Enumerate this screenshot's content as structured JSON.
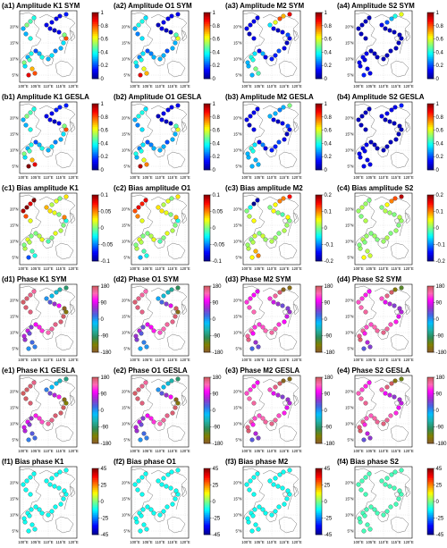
{
  "figure": {
    "axis_ticks": {
      "lon": [
        "100°E",
        "105°E",
        "110°E",
        "115°E",
        "120°E"
      ],
      "lat": [
        "5°N",
        "10°N",
        "15°N",
        "20°N"
      ]
    },
    "colormaps": {
      "jet": [
        "#00008f",
        "#0000ff",
        "#0080ff",
        "#00ffff",
        "#80ff80",
        "#ffff00",
        "#ff8000",
        "#ff0000",
        "#800000"
      ],
      "phase": [
        "#8b5a2b",
        "#808000",
        "#2e8b57",
        "#20b2aa",
        "#00bfff",
        "#4169e1",
        "#9932cc",
        "#ff00ff",
        "#ff69b4",
        "#cd5c5c"
      ]
    },
    "point_values": [
      [
        0.35,
        0.5,
        0.3,
        0.4,
        0.45,
        0.7,
        0.8,
        0.9,
        0.2,
        0.3,
        0.4,
        0.3,
        0.35,
        0.25,
        0.3,
        0.35,
        0.8,
        0.5,
        0.1,
        0.05,
        0.1,
        0.1,
        0.1,
        0.1,
        0.1,
        0.15,
        0.4,
        0.45,
        0.5,
        0.3,
        0.3,
        0.4
      ],
      [
        0.3,
        0.4,
        0.25,
        0.35,
        0.4,
        0.6,
        0.7,
        0.9,
        0.2,
        0.25,
        0.3,
        0.3,
        0.3,
        0.2,
        0.3,
        0.3,
        0.6,
        0.45,
        0.05,
        0.05,
        0.1,
        0.05,
        0.1,
        0.1,
        0.1,
        0.1,
        0.35,
        0.4,
        0.4,
        0.3,
        0.25,
        0.35
      ],
      [
        0.3,
        0.3,
        0.4,
        0.35,
        0.4,
        0.5,
        0.45,
        0.3,
        0.1,
        0.3,
        0.1,
        0.15,
        0.15,
        0.2,
        0.1,
        0.05,
        0.1,
        0.2,
        0.1,
        0.05,
        0.1,
        0.35,
        0.6,
        0.8,
        0.7,
        0.9,
        0.1,
        0.1,
        0.1,
        0.1,
        0.05,
        0.1
      ],
      [
        0.1,
        0.1,
        0.1,
        0.1,
        0.1,
        0.1,
        0.1,
        0.15,
        0.05,
        0.05,
        0.05,
        0.05,
        0.05,
        0.05,
        0.05,
        0.05,
        0.05,
        0.05,
        0.05,
        0.05,
        0.05,
        0.1,
        0.2,
        0.3,
        0.4,
        0.6,
        0.05,
        0.05,
        0.05,
        0.05,
        0.05,
        0.05
      ],
      [
        0.35,
        0.5,
        0.3,
        0.4,
        0.45,
        0.7,
        0.9,
        1.0,
        0.2,
        0.3,
        0.4,
        0.3,
        0.35,
        0.25,
        0.3,
        0.35,
        0.8,
        0.5,
        0.1,
        0.05,
        0.1,
        0.1,
        0.1,
        0.15,
        0.15,
        0.15,
        0.4,
        0.45,
        0.5,
        0.3,
        0.3,
        0.4
      ],
      [
        0.3,
        0.4,
        0.25,
        0.35,
        0.4,
        0.6,
        0.75,
        0.95,
        0.2,
        0.25,
        0.3,
        0.3,
        0.3,
        0.2,
        0.3,
        0.3,
        0.6,
        0.45,
        0.05,
        0.05,
        0.1,
        0.05,
        0.1,
        0.1,
        0.1,
        0.1,
        0.35,
        0.4,
        0.4,
        0.3,
        0.25,
        0.35
      ],
      [
        0.3,
        0.3,
        0.4,
        0.35,
        0.4,
        0.3,
        0.3,
        0.3,
        0.1,
        0.25,
        0.1,
        0.15,
        0.15,
        0.2,
        0.1,
        0.05,
        0.1,
        0.2,
        0.1,
        0.05,
        0.1,
        0.3,
        0.3,
        0.25,
        0.3,
        0.5,
        0.1,
        0.1,
        0.1,
        0.1,
        0.05,
        0.1
      ],
      [
        0.1,
        0.1,
        0.1,
        0.1,
        0.1,
        0.1,
        0.1,
        0.1,
        0.05,
        0.05,
        0.05,
        0.05,
        0.05,
        0.05,
        0.05,
        0.05,
        0.05,
        0.05,
        0.05,
        0.05,
        0.05,
        0.1,
        0.1,
        0.1,
        0.1,
        0.15,
        0.05,
        0.05,
        0.05,
        0.05,
        0.05,
        0.05
      ],
      [
        0.01,
        0.0,
        0.02,
        0.0,
        0.01,
        -0.01,
        -0.02,
        -0.06,
        0.0,
        0.01,
        0.02,
        -0.01,
        0.0,
        0.02,
        0.01,
        0.0,
        -0.02,
        0.05,
        0.0,
        0.02,
        0.03,
        0.04,
        0.01,
        0.02,
        0.0,
        0.03,
        0.1,
        0.08,
        0.1,
        0.09,
        0.06,
        0.02
      ],
      [
        0.01,
        0.0,
        0.02,
        0.0,
        0.01,
        -0.01,
        -0.02,
        -0.04,
        0.0,
        0.01,
        0.02,
        -0.01,
        0.0,
        0.02,
        0.01,
        0.0,
        -0.02,
        0.04,
        0.0,
        0.02,
        0.03,
        0.03,
        0.01,
        0.02,
        0.0,
        0.03,
        0.08,
        0.07,
        0.08,
        0.06,
        0.05,
        0.02
      ],
      [
        0.02,
        0.01,
        0.0,
        0.03,
        0.02,
        0.08,
        0.1,
        0.05,
        0.0,
        0.03,
        0.01,
        0.02,
        0.01,
        0.0,
        0.02,
        0.01,
        0.0,
        0.05,
        -0.02,
        0.0,
        0.05,
        0.0,
        0.05,
        0.1,
        0.1,
        0.15,
        -0.18,
        -0.2,
        -0.05,
        0.0,
        0.02,
        0.05
      ],
      [
        0.01,
        0.0,
        0.02,
        0.01,
        0.0,
        0.02,
        0.03,
        0.05,
        0.0,
        0.01,
        0.0,
        0.01,
        0.02,
        0.0,
        0.01,
        0.0,
        0.01,
        0.02,
        0.0,
        0.01,
        0.02,
        0.0,
        0.05,
        0.1,
        0.12,
        0.18,
        0.0,
        0.01,
        0.02,
        0.01,
        0.0,
        0.02
      ],
      [
        60,
        70,
        80,
        50,
        40,
        20,
        10,
        0,
        100,
        110,
        120,
        140,
        150,
        160,
        170,
        175,
        -150,
        -170,
        100,
        60,
        30,
        0,
        -30,
        -40,
        -60,
        -90,
        150,
        160,
        170,
        175,
        170,
        165
      ],
      [
        50,
        60,
        70,
        40,
        30,
        10,
        0,
        -10,
        90,
        100,
        110,
        130,
        140,
        150,
        160,
        170,
        -160,
        178,
        90,
        50,
        20,
        -10,
        -40,
        -50,
        -70,
        -100,
        140,
        150,
        160,
        170,
        165,
        160
      ],
      [
        160,
        150,
        140,
        120,
        100,
        60,
        40,
        20,
        120,
        130,
        140,
        150,
        140,
        120,
        100,
        80,
        60,
        50,
        40,
        60,
        80,
        120,
        150,
        170,
        -170,
        -160,
        90,
        100,
        110,
        120,
        130,
        140
      ],
      [
        170,
        160,
        150,
        130,
        110,
        70,
        50,
        30,
        130,
        140,
        150,
        160,
        150,
        130,
        110,
        90,
        70,
        60,
        50,
        70,
        90,
        130,
        160,
        175,
        -150,
        -120,
        100,
        110,
        120,
        130,
        140,
        150
      ],
      [
        70,
        80,
        90,
        60,
        50,
        30,
        20,
        10,
        110,
        120,
        130,
        150,
        160,
        170,
        175,
        178,
        -140,
        -160,
        110,
        70,
        40,
        10,
        -20,
        -30,
        -50,
        -80,
        160,
        170,
        175,
        178,
        175,
        170
      ],
      [
        60,
        70,
        80,
        50,
        40,
        20,
        10,
        0,
        100,
        110,
        120,
        140,
        150,
        160,
        170,
        175,
        -150,
        -170,
        100,
        60,
        30,
        0,
        -30,
        -40,
        -60,
        -90,
        150,
        160,
        170,
        175,
        170,
        165
      ],
      [
        170,
        160,
        150,
        130,
        110,
        70,
        50,
        30,
        130,
        140,
        150,
        160,
        150,
        130,
        110,
        90,
        70,
        60,
        50,
        70,
        90,
        130,
        160,
        175,
        -170,
        -160,
        100,
        110,
        120,
        130,
        140,
        150
      ],
      [
        175,
        165,
        155,
        135,
        115,
        75,
        55,
        35,
        135,
        145,
        155,
        165,
        155,
        135,
        115,
        95,
        75,
        65,
        55,
        75,
        95,
        135,
        165,
        178,
        -155,
        -130,
        105,
        115,
        125,
        135,
        145,
        155
      ],
      [
        -10,
        -10,
        -10,
        -10,
        -10,
        -10,
        -10,
        -10,
        -10,
        -10,
        -10,
        -10,
        -10,
        -10,
        -10,
        -10,
        -10,
        -10,
        -10,
        -10,
        -10,
        -10,
        -10,
        -10,
        -10,
        -10,
        -10,
        -10,
        -10,
        -10,
        -10,
        -10
      ],
      [
        -10,
        -10,
        -10,
        -10,
        -10,
        -10,
        -10,
        -10,
        -10,
        -10,
        -10,
        -10,
        -10,
        -10,
        -10,
        -10,
        -10,
        -10,
        -10,
        -10,
        -10,
        -10,
        -10,
        -10,
        -10,
        -10,
        -10,
        -10,
        -10,
        -10,
        -10,
        -10
      ],
      [
        -10,
        -10,
        -10,
        -10,
        -10,
        -10,
        -10,
        -10,
        -10,
        -10,
        -10,
        -10,
        -10,
        -10,
        -10,
        -10,
        -10,
        -10,
        -10,
        -10,
        -10,
        -10,
        -10,
        -10,
        -10,
        -10,
        -10,
        -10,
        -10,
        -10,
        -10,
        -10
      ],
      [
        -5,
        -5,
        -5,
        -5,
        -5,
        -5,
        -5,
        -5,
        -5,
        -5,
        -5,
        -5,
        -5,
        -5,
        -5,
        -5,
        -5,
        -5,
        -5,
        -5,
        -5,
        -5,
        -5,
        -5,
        -5,
        -5,
        -5,
        -5,
        -5,
        -5,
        -5,
        -5
      ]
    ]
  },
  "chart_data": [
    {
      "type": "scatter",
      "title": "(a1) Amplitude K1 SYM",
      "cmap": "jet",
      "clim": [
        0,
        1
      ],
      "colorbar_ticks": [
        "1",
        "0.8",
        "0.6",
        "0.4",
        "0.2",
        "0"
      ]
    },
    {
      "type": "scatter",
      "title": "(a2) Amplitude O1 SYM",
      "cmap": "jet",
      "clim": [
        0,
        1
      ],
      "colorbar_ticks": [
        "1",
        "0.8",
        "0.6",
        "0.4",
        "0.2",
        "0"
      ]
    },
    {
      "type": "scatter",
      "title": "(a3) Amplitude M2 SYM",
      "cmap": "jet",
      "clim": [
        0,
        1
      ],
      "colorbar_ticks": [
        "1",
        "0.8",
        "0.6",
        "0.4",
        "0.2",
        "0"
      ]
    },
    {
      "type": "scatter",
      "title": "(a4) Amplitude S2 SYM",
      "cmap": "jet",
      "clim": [
        0,
        1
      ],
      "colorbar_ticks": [
        "1",
        "0.8",
        "0.6",
        "0.4",
        "0.2",
        "0"
      ]
    },
    {
      "type": "scatter",
      "title": "(b1) Amplitude K1 GESLA",
      "cmap": "jet",
      "clim": [
        0,
        1
      ],
      "colorbar_ticks": [
        "1",
        "0.8",
        "0.6",
        "0.4",
        "0.2",
        "0"
      ]
    },
    {
      "type": "scatter",
      "title": "(b2) Amplitude O1 GESLA",
      "cmap": "jet",
      "clim": [
        0,
        1
      ],
      "colorbar_ticks": [
        "1",
        "0.8",
        "0.6",
        "0.4",
        "0.2",
        "0"
      ]
    },
    {
      "type": "scatter",
      "title": "(b3) Amplitude M2 GESLA",
      "cmap": "jet",
      "clim": [
        0,
        1
      ],
      "colorbar_ticks": [
        "1",
        "0.8",
        "0.6",
        "0.4",
        "0.2",
        "0"
      ]
    },
    {
      "type": "scatter",
      "title": "(b4) Amplitude S2 GESLA",
      "cmap": "jet",
      "clim": [
        0,
        1
      ],
      "colorbar_ticks": [
        "1",
        "0.8",
        "0.6",
        "0.4",
        "0.2",
        "0"
      ]
    },
    {
      "type": "scatter",
      "title": "(c1) Bias amplitude K1",
      "cmap": "jet",
      "clim": [
        -0.1,
        0.1
      ],
      "colorbar_ticks": [
        "0.1",
        "0.05",
        "0",
        "-0.05",
        "-0.1"
      ]
    },
    {
      "type": "scatter",
      "title": "(c2) Bias amplitude O1",
      "cmap": "jet",
      "clim": [
        -0.1,
        0.1
      ],
      "colorbar_ticks": [
        "0.1",
        "0.05",
        "0",
        "-0.05",
        "-0.1"
      ]
    },
    {
      "type": "scatter",
      "title": "(c3) Bias amplitude M2",
      "cmap": "jet",
      "clim": [
        -0.2,
        0.2
      ],
      "colorbar_ticks": [
        "0.2",
        "0.1",
        "0",
        "-0.1",
        "-0.2"
      ]
    },
    {
      "type": "scatter",
      "title": "(c4) Bias amplitude S2",
      "cmap": "jet",
      "clim": [
        -0.2,
        0.2
      ],
      "colorbar_ticks": [
        "0.2",
        "0.1",
        "0",
        "-0.1",
        "-0.2"
      ]
    },
    {
      "type": "scatter",
      "title": "(d1) Phase K1 SYM",
      "cmap": "phase",
      "clim": [
        -180,
        180
      ],
      "colorbar_ticks": [
        "180",
        "90",
        "0",
        "-90",
        "-180"
      ]
    },
    {
      "type": "scatter",
      "title": "(d2) Phase O1 SYM",
      "cmap": "phase",
      "clim": [
        -180,
        180
      ],
      "colorbar_ticks": [
        "180",
        "90",
        "0",
        "-90",
        "-180"
      ]
    },
    {
      "type": "scatter",
      "title": "(d3) Phase M2 SYM",
      "cmap": "phase",
      "clim": [
        -180,
        180
      ],
      "colorbar_ticks": [
        "180",
        "90",
        "0",
        "-90",
        "-180"
      ]
    },
    {
      "type": "scatter",
      "title": "(d4) Phase S2 SYM",
      "cmap": "phase",
      "clim": [
        -180,
        180
      ],
      "colorbar_ticks": [
        "180",
        "90",
        "0",
        "-90",
        "-180"
      ]
    },
    {
      "type": "scatter",
      "title": "(e1) Phase K1 GESLA",
      "cmap": "phase",
      "clim": [
        -180,
        180
      ],
      "colorbar_ticks": [
        "180",
        "90",
        "0",
        "-90",
        "-180"
      ]
    },
    {
      "type": "scatter",
      "title": "(e2) Phase O1 GESLA",
      "cmap": "phase",
      "clim": [
        -180,
        180
      ],
      "colorbar_ticks": [
        "180",
        "90",
        "0",
        "-90",
        "-180"
      ]
    },
    {
      "type": "scatter",
      "title": "(e3) Phase M2 GESLA",
      "cmap": "phase",
      "clim": [
        -180,
        180
      ],
      "colorbar_ticks": [
        "180",
        "90",
        "0",
        "-90",
        "-180"
      ]
    },
    {
      "type": "scatter",
      "title": "(e4) Phase S2 GESLA",
      "cmap": "phase",
      "clim": [
        -180,
        180
      ],
      "colorbar_ticks": [
        "180",
        "90",
        "0",
        "-90",
        "-180"
      ]
    },
    {
      "type": "scatter",
      "title": "(f1) Bias phase K1",
      "cmap": "jet",
      "clim": [
        -45,
        45
      ],
      "colorbar_ticks": [
        "45",
        "25",
        "0",
        "-25",
        "-45"
      ]
    },
    {
      "type": "scatter",
      "title": "(f2) Bias phase O1",
      "cmap": "jet",
      "clim": [
        -45,
        45
      ],
      "colorbar_ticks": [
        "45",
        "25",
        "0",
        "-25",
        "-45"
      ]
    },
    {
      "type": "scatter",
      "title": "(f3) Bias phase M2",
      "cmap": "jet",
      "clim": [
        -45,
        45
      ],
      "colorbar_ticks": [
        "45",
        "25",
        "0",
        "-25",
        "-45"
      ]
    },
    {
      "type": "scatter",
      "title": "(f4) Bias phase S2",
      "cmap": "jet",
      "clim": [
        -45,
        45
      ],
      "colorbar_ticks": [
        "45",
        "25",
        "0",
        "-25",
        "-45"
      ]
    }
  ]
}
